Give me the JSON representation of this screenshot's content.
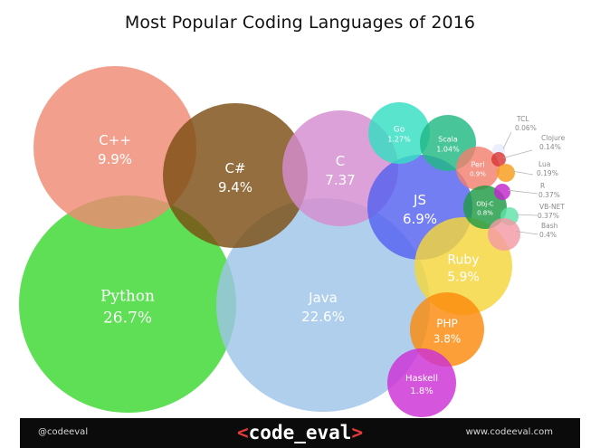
{
  "chart_data": {
    "type": "bubble",
    "title": "Most Popular Coding Languages of 2016",
    "bubbles": [
      {
        "name": "Python",
        "value_label": "26.7%",
        "value": 26.7,
        "color": "#3ad82f"
      },
      {
        "name": "Java",
        "value_label": "22.6%",
        "value": 22.6,
        "color": "#9dc4e8"
      },
      {
        "name": "C++",
        "value_label": "9.9%",
        "value": 9.9,
        "color": "#ef8a74"
      },
      {
        "name": "C#",
        "value_label": "9.4%",
        "value": 9.4,
        "color": "#7d4e14"
      },
      {
        "name": "C",
        "value_label": "7.37",
        "value": 7.37,
        "color": "#d48cd0"
      },
      {
        "name": "JS",
        "value_label": "6.9%",
        "value": 6.9,
        "color": "#5462f0"
      },
      {
        "name": "Ruby",
        "value_label": "5.9%",
        "value": 5.9,
        "color": "#f4d53a"
      },
      {
        "name": "PHP",
        "value_label": "3.8%",
        "value": 3.8,
        "color": "#fb8a0c"
      },
      {
        "name": "Haskell",
        "value_label": "1.8%",
        "value": 1.8,
        "color": "#cc30d6"
      },
      {
        "name": "Go",
        "value_label": "1.27%",
        "value": 1.27,
        "color": "#34dec2"
      },
      {
        "name": "Scala",
        "value_label": "1.04%",
        "value": 1.04,
        "color": "#21b884"
      },
      {
        "name": "Perl",
        "value_label": "0.9%",
        "value": 0.9,
        "color": "#f2806e"
      },
      {
        "name": "Obj-C",
        "value_label": "0.8%",
        "value": 0.8,
        "color": "#1f9a44"
      },
      {
        "name": "TCL",
        "value_label": "0.06%",
        "value": 0.06,
        "color": "#e6ecfd"
      },
      {
        "name": "Clojure",
        "value_label": "0.14%",
        "value": 0.14,
        "color": "#d93838"
      },
      {
        "name": "Lua",
        "value_label": "0.19%",
        "value": 0.19,
        "color": "#f69c18"
      },
      {
        "name": "R",
        "value_label": "0.37%",
        "value": 0.37,
        "color": "#c226cc"
      },
      {
        "name": "VB-NET",
        "value_label": "0.37%",
        "value": 0.37,
        "color": "#5fe2a8"
      },
      {
        "name": "Bash",
        "value_label": "0.4%",
        "value": 0.4,
        "color": "#f39aa3"
      }
    ]
  },
  "footer": {
    "handle": "@codeeval",
    "url": "www.codeeval.com",
    "logo_open": "<",
    "logo_text": "code_eval",
    "logo_close": ">",
    "background": "#0b0b0b",
    "logo_accent": "#e43a3a"
  }
}
